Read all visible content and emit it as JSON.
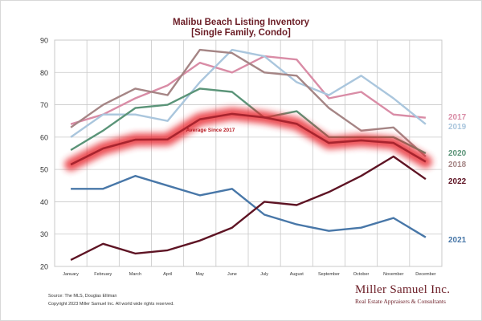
{
  "chart_data": {
    "type": "line",
    "title": "Malibu Beach Listing Inventory",
    "subtitle": "[Single Family, Condo]",
    "categories": [
      "January",
      "February",
      "March",
      "April",
      "May",
      "June",
      "July",
      "August",
      "September",
      "October",
      "November",
      "December"
    ],
    "ylim": [
      20,
      90
    ],
    "yticks": [
      20,
      30,
      40,
      50,
      60,
      70,
      80,
      90
    ],
    "grid": true,
    "series": [
      {
        "name": "2017",
        "color": "#d98ca6",
        "values": [
          64,
          67,
          72,
          76,
          83,
          80,
          85,
          84,
          72,
          74,
          67,
          66
        ]
      },
      {
        "name": "2019",
        "color": "#aac6dd",
        "values": [
          60,
          67,
          67,
          65,
          77,
          87,
          85,
          77,
          73,
          79,
          72,
          64
        ]
      },
      {
        "name": "2018",
        "color": "#a58585",
        "values": [
          63,
          70,
          75,
          73,
          87,
          86,
          80,
          79,
          69,
          62,
          63,
          54
        ]
      },
      {
        "name": "2020",
        "color": "#5a9478",
        "values": [
          56,
          62,
          69,
          70,
          75,
          74,
          66,
          68,
          60,
          60,
          60,
          55
        ]
      },
      {
        "name": "2021",
        "color": "#4877a8",
        "values": [
          44,
          44,
          48,
          45,
          42,
          44,
          36,
          33,
          31,
          32,
          35,
          29
        ]
      },
      {
        "name": "2022",
        "color": "#5e1424",
        "values": [
          22,
          27,
          24,
          25,
          28,
          32,
          40,
          39,
          43,
          48,
          54,
          47
        ]
      },
      {
        "name": "Average  Since 2017",
        "color": "#a8242e",
        "highlight": true,
        "values": [
          51.5,
          56.5,
          59.2,
          59.3,
          65.5,
          67.2,
          66.1,
          64.1,
          58.2,
          59,
          58.2,
          52.4
        ]
      }
    ]
  },
  "labels": {
    "series_labels": [
      "2017",
      "2019",
      "2020",
      "2018",
      "2022",
      "2021"
    ],
    "average_label": "Average  Since 2017",
    "source": "Source: The MLS, Douglas Elliman",
    "copyright": "Copyright 2023 Miller Samuel Inc.  All world wide rights reserved.",
    "brand": "Miller Samuel Inc.",
    "tagline": "Real Estate Appraisers & Consultants"
  },
  "colors": {
    "title": "#6b1d26",
    "grid": "#c8c8c8",
    "brand": "#6b1d26"
  }
}
